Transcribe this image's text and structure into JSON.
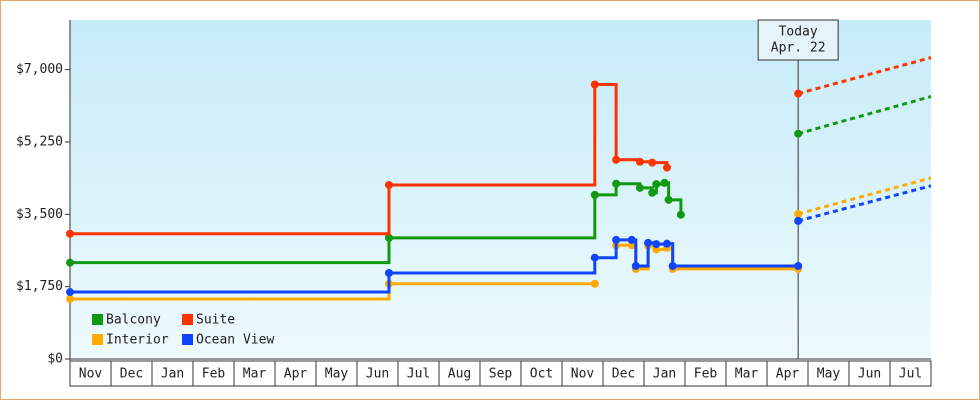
{
  "chart_data": {
    "type": "step",
    "xlim": [
      0,
      21
    ],
    "xticks": [
      {
        "value": 0.5,
        "label": "Nov"
      },
      {
        "value": 1.5,
        "label": "Dec"
      },
      {
        "value": 2.5,
        "label": "Jan"
      },
      {
        "value": 3.5,
        "label": "Feb"
      },
      {
        "value": 4.5,
        "label": "Mar"
      },
      {
        "value": 5.5,
        "label": "Apr"
      },
      {
        "value": 6.5,
        "label": "May"
      },
      {
        "value": 7.5,
        "label": "Jun"
      },
      {
        "value": 8.5,
        "label": "Jul"
      },
      {
        "value": 9.5,
        "label": "Aug"
      },
      {
        "value": 10.5,
        "label": "Sep"
      },
      {
        "value": 11.5,
        "label": "Oct"
      },
      {
        "value": 12.5,
        "label": "Nov"
      },
      {
        "value": 13.5,
        "label": "Dec"
      },
      {
        "value": 14.5,
        "label": "Jan"
      },
      {
        "value": 15.5,
        "label": "Feb"
      },
      {
        "value": 16.5,
        "label": "Mar"
      },
      {
        "value": 17.5,
        "label": "Apr"
      },
      {
        "value": 18.5,
        "label": "May"
      },
      {
        "value": 19.5,
        "label": "Jun"
      },
      {
        "value": 20.5,
        "label": "Jul"
      }
    ],
    "ylim": [
      0,
      8200
    ],
    "yticks": [
      {
        "value": 0,
        "label": "$0"
      },
      {
        "value": 1750,
        "label": "$1,750"
      },
      {
        "value": 3500,
        "label": "$3,500"
      },
      {
        "value": 5250,
        "label": "$5,250"
      },
      {
        "value": 7000,
        "label": "$7,000"
      }
    ],
    "legend": "lower left",
    "today": {
      "x": 17.76,
      "label": [
        "Today",
        "Apr. 22"
      ]
    },
    "series": [
      {
        "name": "Balcony",
        "color": "#119911",
        "x": [
          0,
          7.78,
          12.8,
          13.32,
          13.9,
          14.2,
          14.3,
          14.5,
          14.6,
          14.9
        ],
        "values": [
          2330,
          2930,
          3970,
          4240,
          4140,
          4020,
          4230,
          4260,
          3850,
          3490
        ],
        "forecast_x": [
          17.76,
          21
        ],
        "forecast_values": [
          5450,
          6350
        ]
      },
      {
        "name": "Suite",
        "color": "#ff3300",
        "x": [
          0,
          7.78,
          12.8,
          13.32,
          13.9,
          14.2,
          14.56
        ],
        "values": [
          3030,
          4210,
          6640,
          4820,
          4770,
          4750,
          4630
        ],
        "forecast_x": [
          17.76,
          21
        ],
        "forecast_values": [
          6420,
          7290
        ]
      },
      {
        "name": "Interior",
        "color": "#ffaa00",
        "x": [
          0,
          7.78,
          12.8,
          null,
          13.32,
          13.7,
          13.8,
          14.1,
          14.3,
          14.56,
          14.7,
          17.76
        ],
        "values": [
          1450,
          1820,
          1820,
          null,
          2750,
          2750,
          2180,
          2740,
          2650,
          2690,
          2180,
          2180
        ],
        "forecast_x": [
          17.76,
          21
        ],
        "forecast_values": [
          3510,
          4380
        ]
      },
      {
        "name": "Ocean View",
        "color": "#1144ff",
        "x": [
          0,
          7.78,
          12.8,
          13.32,
          13.7,
          13.8,
          14.1,
          14.3,
          14.56,
          14.7,
          17.76
        ],
        "values": [
          1620,
          2080,
          2450,
          2880,
          2880,
          2250,
          2810,
          2780,
          2790,
          2250,
          2250
        ],
        "forecast_x": [
          17.76,
          21
        ],
        "forecast_values": [
          3340,
          4190
        ]
      }
    ]
  }
}
